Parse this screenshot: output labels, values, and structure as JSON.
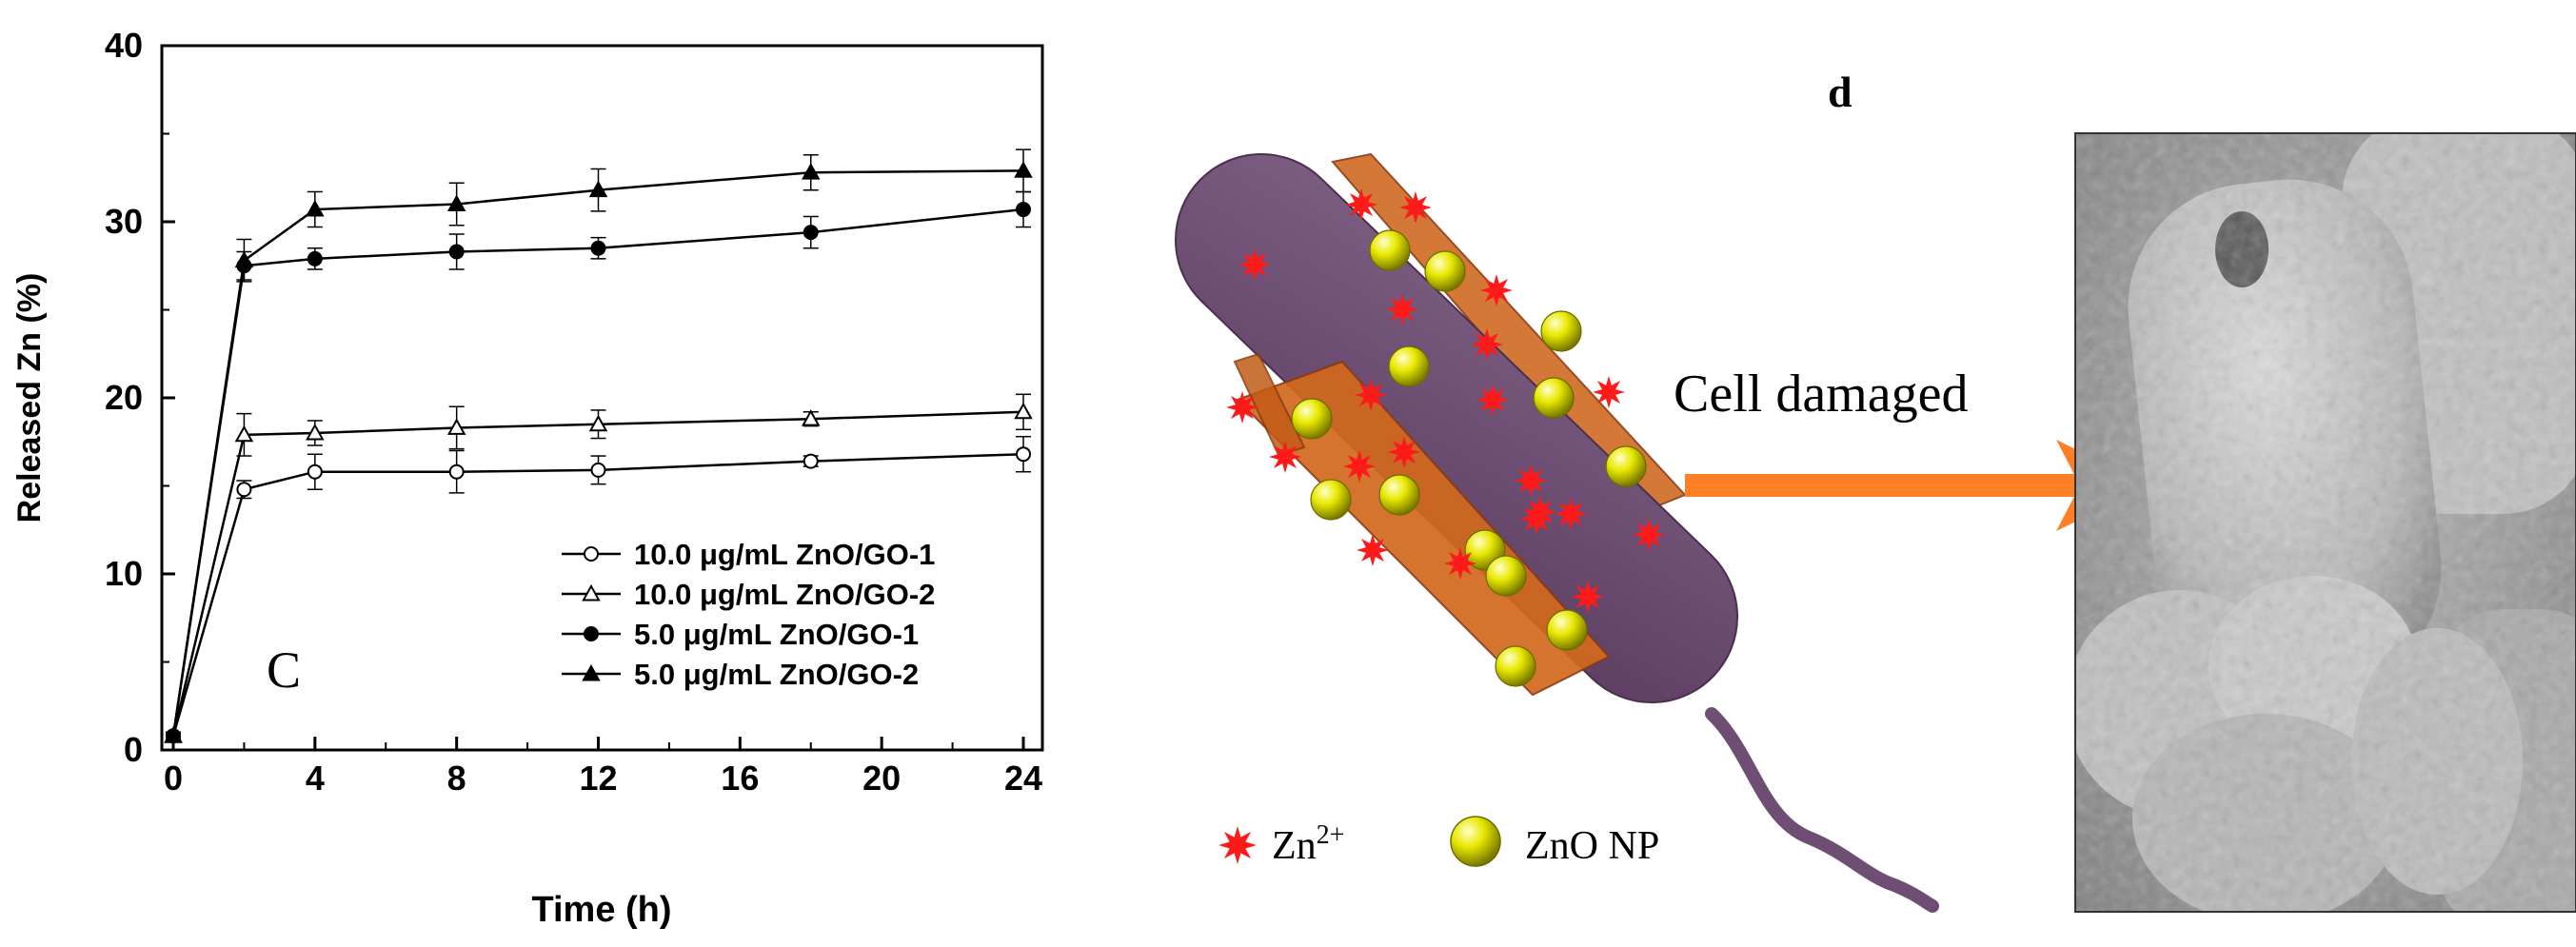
{
  "chart_data": {
    "type": "line",
    "panel_label": "C",
    "xlabel": "Time (h)",
    "ylabel": "Released Zn (%)",
    "xlim": [
      0,
      24
    ],
    "ylim": [
      0,
      40
    ],
    "x_ticks": [
      0,
      4,
      8,
      12,
      16,
      20,
      24
    ],
    "y_ticks": [
      0,
      10,
      20,
      30,
      40
    ],
    "legend_position": "bottom-right",
    "x": [
      0,
      2,
      4,
      8,
      12,
      18,
      24
    ],
    "series": [
      {
        "name": "10.0 μg/mL ZnO/GO-1",
        "marker": "open-circle",
        "values": [
          0.8,
          14.8,
          15.8,
          15.8,
          15.9,
          16.4,
          16.8
        ],
        "errors": [
          0.2,
          0.5,
          1.0,
          1.2,
          0.8,
          0.3,
          1.0
        ]
      },
      {
        "name": "10.0 μg/mL ZnO/GO-2",
        "marker": "open-triangle",
        "values": [
          0.8,
          17.9,
          18.0,
          18.3,
          18.5,
          18.8,
          19.2
        ],
        "errors": [
          0.2,
          1.2,
          0.7,
          1.2,
          0.8,
          0.4,
          1.0
        ]
      },
      {
        "name": "5.0 μg/mL ZnO/GO-1",
        "marker": "filled-circle",
        "values": [
          0.8,
          27.5,
          27.9,
          28.3,
          28.5,
          29.4,
          30.7
        ],
        "errors": [
          0.2,
          0.8,
          0.6,
          1.0,
          0.6,
          0.9,
          1.0
        ]
      },
      {
        "name": "5.0 μg/mL ZnO/GO-2",
        "marker": "filled-triangle",
        "values": [
          0.8,
          27.8,
          30.7,
          31.0,
          31.8,
          32.8,
          32.9
        ],
        "errors": [
          0.2,
          1.2,
          1.0,
          1.2,
          1.2,
          1.0,
          1.2
        ]
      }
    ]
  },
  "diagram": {
    "panel_label": "d",
    "arrow_label": "Cell damaged",
    "legend_ion_label": "Zn",
    "legend_ion_superscript": "2+",
    "legend_np_label": "ZnO NP"
  },
  "colors": {
    "bacterium": "#6e4e73",
    "sheet": "#d2691e",
    "ion": "#ff1a1a",
    "nanoparticle": "#d8d800",
    "arrow": "#ff7f27",
    "sem_background": "#9a9a9a"
  }
}
